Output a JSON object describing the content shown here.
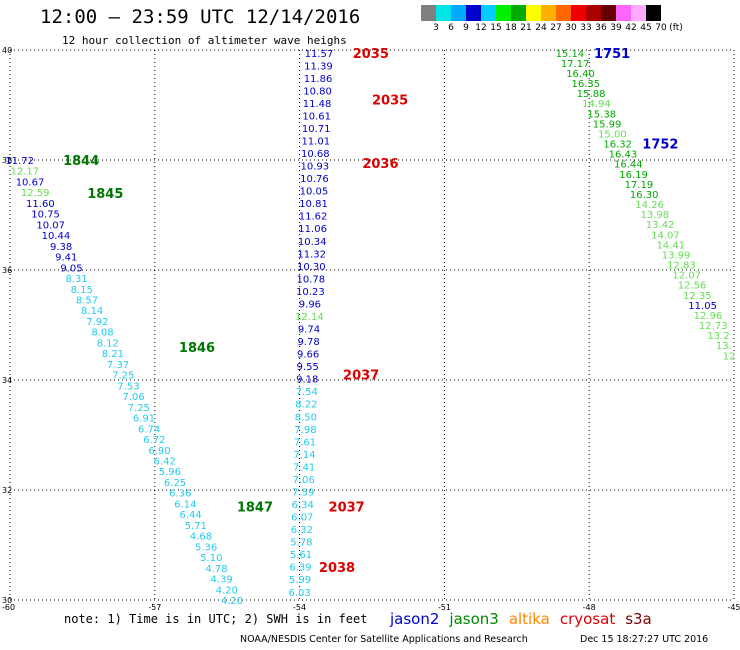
{
  "header": {
    "title": "12:00 — 23:59 UTC 12/14/2016",
    "subtitle": "12 hour collection of altimeter wave heighs"
  },
  "legend": {
    "colors": [
      "#808080",
      "#00e6e6",
      "#00aaff",
      "#0000cc",
      "#00ccff",
      "#00ee00",
      "#00aa00",
      "#ffff00",
      "#ffb000",
      "#ff6600",
      "#ee0000",
      "#aa0000",
      "#660000",
      "#ff66ff",
      "#ffaaff",
      "#000000"
    ],
    "labels": [
      "3",
      "6",
      "9",
      "12",
      "15",
      "18",
      "21",
      "24",
      "27",
      "30",
      "33",
      "36",
      "39",
      "42",
      "45",
      "70",
      "(ft)"
    ]
  },
  "map": {
    "x_ticks": [
      "-60",
      "-57",
      "-54",
      "-51",
      "-48",
      "-45"
    ],
    "y_ticks": [
      "40",
      "38",
      "36",
      "34",
      "32",
      "30"
    ],
    "lon_range": [
      -60,
      -45
    ],
    "lat_range": [
      30,
      40
    ]
  },
  "tracks": [
    {
      "name": "track-west",
      "lon_start": -59.8,
      "lat_start": 38.0,
      "lon_end": -55.4,
      "lat_end": 30.0,
      "values": [
        "11.72",
        "12.17",
        "10.67",
        "12.59",
        "11.60",
        "10.75",
        "10.07",
        "10.44",
        "9.38",
        "9.41",
        "9.05",
        "8.31",
        "8.15",
        "8.57",
        "8.14",
        "7.92",
        "8.08",
        "8.12",
        "8.21",
        "7.37",
        "7.25",
        "7.53",
        "7.06",
        "7.25",
        "6.91",
        "6.74",
        "6.72",
        "6.90",
        "6.42",
        "5.96",
        "6.25",
        "6.36",
        "6.14",
        "6.44",
        "5.71",
        "4.68",
        "5.36",
        "5.10",
        "4.78",
        "4.39",
        "4.20",
        "4.20"
      ],
      "colors": [
        "#0000cc",
        "#66dd55",
        "#0000cc",
        "#66dd55",
        "#0000cc",
        "#0000cc",
        "#0000cc",
        "#0000cc",
        "#0000cc",
        "#0000cc",
        "#0000cc",
        "#22ccee",
        "#22ccee",
        "#22ccee",
        "#22ccee",
        "#22ccee",
        "#22ccee",
        "#22ccee",
        "#22ccee",
        "#22ccee",
        "#22ccee",
        "#22ccee",
        "#22ccee",
        "#22ccee",
        "#22ccee",
        "#22ccee",
        "#22ccee",
        "#22ccee",
        "#22ccee",
        "#22ccee",
        "#22ccee",
        "#22ccee",
        "#22ccee",
        "#22ccee",
        "#22ccee",
        "#22ccee",
        "#22ccee",
        "#22ccee",
        "#22ccee",
        "#22ccee",
        "#22ccee",
        "#22ccee"
      ]
    },
    {
      "name": "track-center",
      "lon_start": -53.6,
      "lat_start": 39.95,
      "lon_end": -54.0,
      "lat_end": 30.15,
      "values": [
        "11.57",
        "11.39",
        "11.86",
        "10.80",
        "11.48",
        "10.61",
        "10.71",
        "11.01",
        "10.68",
        "10.93",
        "10.76",
        "10.05",
        "10.81",
        "11.62",
        "11.06",
        "10.34",
        "11.32",
        "10.30",
        "10.78",
        "10.23",
        "9.96",
        "12.14",
        "9.74",
        "9.78",
        "9.66",
        "9.55",
        "9.18",
        "7.54",
        "8.22",
        "8.50",
        "7.98",
        "7.61",
        "7.14",
        "7.41",
        "7.06",
        "7.59",
        "6.34",
        "6.07",
        "6.32",
        "5.78",
        "5.61",
        "6.39",
        "5.99",
        "6.03"
      ],
      "colors": [
        "#0000cc",
        "#0000cc",
        "#0000cc",
        "#0000cc",
        "#0000cc",
        "#0000cc",
        "#0000cc",
        "#0000cc",
        "#0000cc",
        "#0000cc",
        "#0000cc",
        "#0000cc",
        "#0000cc",
        "#0000cc",
        "#0000cc",
        "#0000cc",
        "#0000cc",
        "#0000cc",
        "#0000cc",
        "#0000cc",
        "#0000cc",
        "#66dd55",
        "#0000cc",
        "#0000cc",
        "#0000cc",
        "#0000cc",
        "#0000cc",
        "#22ccee",
        "#22ccee",
        "#22ccee",
        "#22ccee",
        "#22ccee",
        "#22ccee",
        "#22ccee",
        "#22ccee",
        "#22ccee",
        "#22ccee",
        "#22ccee",
        "#22ccee",
        "#22ccee",
        "#22ccee",
        "#22ccee",
        "#22ccee",
        "#22ccee"
      ]
    },
    {
      "name": "track-east",
      "lon_start": -48.4,
      "lat_start": 39.95,
      "lon_end": -45.1,
      "lat_end": 34.45,
      "values": [
        "15.14",
        "17.17",
        "16.40",
        "16.35",
        "15.88",
        "14.94",
        "15.38",
        "15.99",
        "15.00",
        "16.32",
        "16.43",
        "16.44",
        "16.19",
        "17.19",
        "16.30",
        "14.26",
        "13.98",
        "13.42",
        "14.07",
        "14.41",
        "13.99",
        "12.83",
        "12.07",
        "12.56",
        "12.35",
        "11.05",
        "12.96",
        "12.73",
        "13.2",
        "13.",
        "12"
      ],
      "colors": [
        "#00aa00",
        "#00aa00",
        "#00aa00",
        "#00aa00",
        "#00aa00",
        "#66dd55",
        "#00aa00",
        "#00aa00",
        "#66dd55",
        "#00aa00",
        "#00aa00",
        "#00aa00",
        "#00aa00",
        "#00aa00",
        "#00aa00",
        "#66dd55",
        "#66dd55",
        "#66dd55",
        "#66dd55",
        "#66dd55",
        "#66dd55",
        "#66dd55",
        "#66dd55",
        "#66dd55",
        "#66dd55",
        "#0000cc",
        "#66dd55",
        "#66dd55",
        "#66dd55",
        "#66dd55",
        "#66dd55"
      ]
    }
  ],
  "time_labels": [
    {
      "text": "1844",
      "color": "#007700",
      "lon": -58.9,
      "lat": 38.0
    },
    {
      "text": "1845",
      "color": "#007700",
      "lon": -58.4,
      "lat": 37.4
    },
    {
      "text": "1846",
      "color": "#007700",
      "lon": -56.5,
      "lat": 34.6
    },
    {
      "text": "1847",
      "color": "#007700",
      "lon": -55.3,
      "lat": 31.7
    },
    {
      "text": "2035",
      "color": "#dd0000",
      "lon": -52.9,
      "lat": 39.95
    },
    {
      "text": "2035",
      "color": "#dd0000",
      "lon": -52.5,
      "lat": 39.1
    },
    {
      "text": "2036",
      "color": "#dd0000",
      "lon": -52.7,
      "lat": 37.95
    },
    {
      "text": "2037",
      "color": "#dd0000",
      "lon": -53.1,
      "lat": 34.1
    },
    {
      "text": "2037",
      "color": "#dd0000",
      "lon": -53.4,
      "lat": 31.7
    },
    {
      "text": "2038",
      "color": "#dd0000",
      "lon": -53.6,
      "lat": 30.6
    },
    {
      "text": "1751",
      "color": "#0000cc",
      "lon": -47.9,
      "lat": 39.95
    },
    {
      "text": "1752",
      "color": "#0000cc",
      "lon": -46.9,
      "lat": 38.3
    }
  ],
  "footer": {
    "note": "note: 1) Time is in UTC; 2) SWH is in feet",
    "satellites": [
      {
        "name": "jason2",
        "color": "#0000cc"
      },
      {
        "name": "jason3",
        "color": "#008800"
      },
      {
        "name": "altika",
        "color": "#ff8800"
      },
      {
        "name": "cryosat",
        "color": "#dd0000"
      },
      {
        "name": "s3a",
        "color": "#770000"
      }
    ],
    "credit": "NOAA/NESDIS Center for Satellite Applications and Research",
    "timestamp": "Dec 15 18:27:27 UTC 2016"
  }
}
